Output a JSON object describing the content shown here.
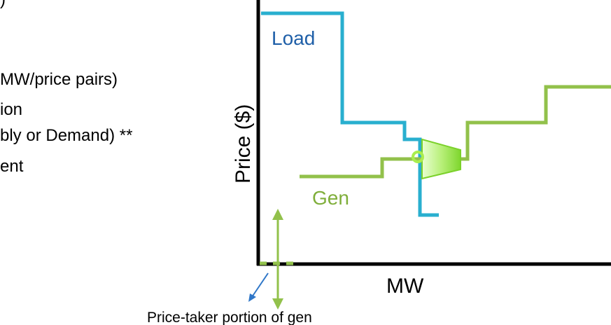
{
  "notes": {
    "lines": [
      ")",
      "MW/price pairs)",
      "ion",
      "bly or Demand) **",
      "ent"
    ]
  },
  "diagram": {
    "y_axis_label": "Price ($)",
    "x_axis_label": "MW",
    "load_label": "Load",
    "gen_label": "Gen",
    "annotation": "Price-taker portion of gen"
  },
  "colors": {
    "load_curve": "#29AFCF",
    "load_label": "#1F5FA8",
    "gen_curve": "#92C14B",
    "gen_label": "#7FAE3A",
    "arrow_fill": "#9BE44A",
    "axis": "#000000",
    "annotation_arrow": "#2F77C8"
  }
}
